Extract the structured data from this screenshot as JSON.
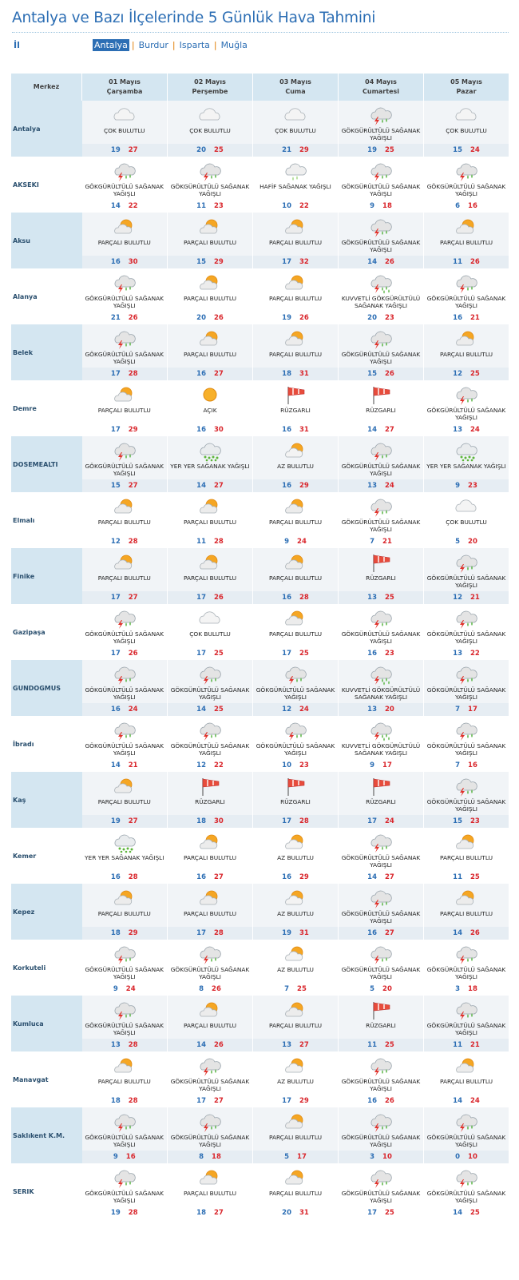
{
  "page": {
    "title": "Antalya ve Bazı İlçelerinde 5 Günlük Hava Tahmini",
    "il_label": "İl",
    "tabs": [
      "Antalya",
      "Burdur",
      "Isparta",
      "Muğla"
    ],
    "active_tab": "Antalya"
  },
  "table": {
    "header_label": "Merkez",
    "days": [
      {
        "date": "01 Mayıs",
        "weekday": "Çarşamba"
      },
      {
        "date": "02 Mayıs",
        "weekday": "Perşembe"
      },
      {
        "date": "03 Mayıs",
        "weekday": "Cuma"
      },
      {
        "date": "04 Mayıs",
        "weekday": "Cumartesi"
      },
      {
        "date": "05 Mayıs",
        "weekday": "Pazar"
      }
    ],
    "rows": [
      {
        "city": "Antalya",
        "days": [
          {
            "cond": "ÇOK BULUTLU",
            "icon": "cloudy-icon",
            "min": "19",
            "max": "27"
          },
          {
            "cond": "ÇOK BULUTLU",
            "icon": "cloudy-icon",
            "min": "20",
            "max": "25"
          },
          {
            "cond": "ÇOK BULUTLU",
            "icon": "cloudy-icon",
            "min": "21",
            "max": "29"
          },
          {
            "cond": "GÖKGÜRÜLTÜLÜ SAĞANAK YAĞIŞLI",
            "icon": "thunderstorm-icon",
            "min": "19",
            "max": "25"
          },
          {
            "cond": "ÇOK BULUTLU",
            "icon": "cloudy-icon",
            "min": "15",
            "max": "24"
          }
        ]
      },
      {
        "city": "AKSEKI",
        "days": [
          {
            "cond": "GÖKGÜRÜLTÜLÜ SAĞANAK YAĞIŞLI",
            "icon": "thunderstorm-icon",
            "min": "14",
            "max": "22"
          },
          {
            "cond": "GÖKGÜRÜLTÜLÜ SAĞANAK YAĞIŞLI",
            "icon": "thunderstorm-icon",
            "min": "11",
            "max": "23"
          },
          {
            "cond": "HAFİF SAĞANAK YAĞIŞLI",
            "icon": "light-shower-icon",
            "min": "10",
            "max": "22"
          },
          {
            "cond": "GÖKGÜRÜLTÜLÜ SAĞANAK YAĞIŞLI",
            "icon": "thunderstorm-icon",
            "min": "9",
            "max": "18"
          },
          {
            "cond": "GÖKGÜRÜLTÜLÜ SAĞANAK YAĞIŞLI",
            "icon": "thunderstorm-icon",
            "min": "6",
            "max": "16"
          }
        ]
      },
      {
        "city": "Aksu",
        "days": [
          {
            "cond": "PARÇALI BULUTLU",
            "icon": "partly-cloudy-icon",
            "min": "16",
            "max": "30"
          },
          {
            "cond": "PARÇALI BULUTLU",
            "icon": "partly-cloudy-icon",
            "min": "15",
            "max": "29"
          },
          {
            "cond": "PARÇALI BULUTLU",
            "icon": "partly-cloudy-icon",
            "min": "17",
            "max": "32"
          },
          {
            "cond": "GÖKGÜRÜLTÜLÜ SAĞANAK YAĞIŞLI",
            "icon": "thunderstorm-icon",
            "min": "14",
            "max": "26"
          },
          {
            "cond": "PARÇALI BULUTLU",
            "icon": "partly-cloudy-icon",
            "min": "11",
            "max": "26"
          }
        ]
      },
      {
        "city": "Alanya",
        "days": [
          {
            "cond": "GÖKGÜRÜLTÜLÜ SAĞANAK YAĞIŞLI",
            "icon": "thunderstorm-icon",
            "min": "21",
            "max": "26"
          },
          {
            "cond": "PARÇALI BULUTLU",
            "icon": "partly-cloudy-icon",
            "min": "20",
            "max": "26"
          },
          {
            "cond": "PARÇALI BULUTLU",
            "icon": "partly-cloudy-icon",
            "min": "19",
            "max": "26"
          },
          {
            "cond": "KUVVETLİ GÖKGÜRÜLTÜLÜ SAĞANAK YAĞIŞLI",
            "icon": "heavy-thunderstorm-icon",
            "min": "20",
            "max": "23"
          },
          {
            "cond": "GÖKGÜRÜLTÜLÜ SAĞANAK YAĞIŞLI",
            "icon": "thunderstorm-icon",
            "min": "16",
            "max": "21"
          }
        ]
      },
      {
        "city": "Belek",
        "days": [
          {
            "cond": "GÖKGÜRÜLTÜLÜ SAĞANAK YAĞIŞLI",
            "icon": "thunderstorm-icon",
            "min": "17",
            "max": "28"
          },
          {
            "cond": "PARÇALI BULUTLU",
            "icon": "partly-cloudy-icon",
            "min": "16",
            "max": "27"
          },
          {
            "cond": "PARÇALI BULUTLU",
            "icon": "partly-cloudy-icon",
            "min": "18",
            "max": "31"
          },
          {
            "cond": "GÖKGÜRÜLTÜLÜ SAĞANAK YAĞIŞLI",
            "icon": "thunderstorm-icon",
            "min": "15",
            "max": "26"
          },
          {
            "cond": "PARÇALI BULUTLU",
            "icon": "partly-cloudy-icon",
            "min": "12",
            "max": "25"
          }
        ]
      },
      {
        "city": "Demre",
        "days": [
          {
            "cond": "PARÇALI BULUTLU",
            "icon": "partly-cloudy-icon",
            "min": "17",
            "max": "29"
          },
          {
            "cond": "AÇIK",
            "icon": "sunny-icon",
            "min": "16",
            "max": "30"
          },
          {
            "cond": "RÜZGARLI",
            "icon": "windsock-icon",
            "min": "16",
            "max": "31"
          },
          {
            "cond": "RÜZGARLI",
            "icon": "windsock-icon",
            "min": "14",
            "max": "27"
          },
          {
            "cond": "GÖKGÜRÜLTÜLÜ SAĞANAK YAĞIŞLI",
            "icon": "thunderstorm-icon",
            "min": "13",
            "max": "24"
          }
        ]
      },
      {
        "city": "DOSEMEALTI",
        "days": [
          {
            "cond": "GÖKGÜRÜLTÜLÜ SAĞANAK YAĞIŞLI",
            "icon": "thunderstorm-icon",
            "min": "15",
            "max": "27"
          },
          {
            "cond": "YER YER SAĞANAK YAĞIŞLI",
            "icon": "scattered-shower-icon",
            "min": "14",
            "max": "27"
          },
          {
            "cond": "AZ BULUTLU",
            "icon": "mostly-sunny-icon",
            "min": "16",
            "max": "29"
          },
          {
            "cond": "GÖKGÜRÜLTÜLÜ SAĞANAK YAĞIŞLI",
            "icon": "thunderstorm-icon",
            "min": "13",
            "max": "24"
          },
          {
            "cond": "YER YER SAĞANAK YAĞIŞLI",
            "icon": "scattered-shower-icon",
            "min": "9",
            "max": "23"
          }
        ]
      },
      {
        "city": "Elmalı",
        "days": [
          {
            "cond": "PARÇALI BULUTLU",
            "icon": "partly-cloudy-icon",
            "min": "12",
            "max": "28"
          },
          {
            "cond": "PARÇALI BULUTLU",
            "icon": "partly-cloudy-icon",
            "min": "11",
            "max": "28"
          },
          {
            "cond": "PARÇALI BULUTLU",
            "icon": "partly-cloudy-icon",
            "min": "9",
            "max": "24"
          },
          {
            "cond": "GÖKGÜRÜLTÜLÜ SAĞANAK YAĞIŞLI",
            "icon": "thunderstorm-icon",
            "min": "7",
            "max": "21"
          },
          {
            "cond": "ÇOK BULUTLU",
            "icon": "cloudy-icon",
            "min": "5",
            "max": "20"
          }
        ]
      },
      {
        "city": "Finike",
        "days": [
          {
            "cond": "PARÇALI BULUTLU",
            "icon": "partly-cloudy-icon",
            "min": "17",
            "max": "27"
          },
          {
            "cond": "PARÇALI BULUTLU",
            "icon": "partly-cloudy-icon",
            "min": "17",
            "max": "26"
          },
          {
            "cond": "PARÇALI BULUTLU",
            "icon": "partly-cloudy-icon",
            "min": "16",
            "max": "28"
          },
          {
            "cond": "RÜZGARLI",
            "icon": "windsock-icon",
            "min": "13",
            "max": "25"
          },
          {
            "cond": "GÖKGÜRÜLTÜLÜ SAĞANAK YAĞIŞLI",
            "icon": "thunderstorm-icon",
            "min": "12",
            "max": "21"
          }
        ]
      },
      {
        "city": "Gazipaşa",
        "days": [
          {
            "cond": "GÖKGÜRÜLTÜLÜ SAĞANAK YAĞIŞLI",
            "icon": "thunderstorm-icon",
            "min": "17",
            "max": "26"
          },
          {
            "cond": "ÇOK BULUTLU",
            "icon": "cloudy-icon",
            "min": "17",
            "max": "25"
          },
          {
            "cond": "PARÇALI BULUTLU",
            "icon": "partly-cloudy-icon",
            "min": "17",
            "max": "25"
          },
          {
            "cond": "GÖKGÜRÜLTÜLÜ SAĞANAK YAĞIŞLI",
            "icon": "thunderstorm-icon",
            "min": "16",
            "max": "23"
          },
          {
            "cond": "GÖKGÜRÜLTÜLÜ SAĞANAK YAĞIŞLI",
            "icon": "thunderstorm-icon",
            "min": "13",
            "max": "22"
          }
        ]
      },
      {
        "city": "GUNDOGMUS",
        "days": [
          {
            "cond": "GÖKGÜRÜLTÜLÜ SAĞANAK YAĞIŞLI",
            "icon": "thunderstorm-icon",
            "min": "16",
            "max": "24"
          },
          {
            "cond": "GÖKGÜRÜLTÜLÜ SAĞANAK YAĞIŞLI",
            "icon": "thunderstorm-icon",
            "min": "14",
            "max": "25"
          },
          {
            "cond": "GÖKGÜRÜLTÜLÜ SAĞANAK YAĞIŞLI",
            "icon": "thunderstorm-icon",
            "min": "12",
            "max": "24"
          },
          {
            "cond": "KUVVETLİ GÖKGÜRÜLTÜLÜ SAĞANAK YAĞIŞLI",
            "icon": "heavy-thunderstorm-icon",
            "min": "13",
            "max": "20"
          },
          {
            "cond": "GÖKGÜRÜLTÜLÜ SAĞANAK YAĞIŞLI",
            "icon": "thunderstorm-icon",
            "min": "7",
            "max": "17"
          }
        ]
      },
      {
        "city": "İbradı",
        "days": [
          {
            "cond": "GÖKGÜRÜLTÜLÜ SAĞANAK YAĞIŞLI",
            "icon": "thunderstorm-icon",
            "min": "14",
            "max": "21"
          },
          {
            "cond": "GÖKGÜRÜLTÜLÜ SAĞANAK YAĞIŞLI",
            "icon": "thunderstorm-icon",
            "min": "12",
            "max": "22"
          },
          {
            "cond": "GÖKGÜRÜLTÜLÜ SAĞANAK YAĞIŞLI",
            "icon": "thunderstorm-icon",
            "min": "10",
            "max": "23"
          },
          {
            "cond": "KUVVETLİ GÖKGÜRÜLTÜLÜ SAĞANAK YAĞIŞLI",
            "icon": "heavy-thunderstorm-icon",
            "min": "9",
            "max": "17"
          },
          {
            "cond": "GÖKGÜRÜLTÜLÜ SAĞANAK YAĞIŞLI",
            "icon": "thunderstorm-icon",
            "min": "7",
            "max": "16"
          }
        ]
      },
      {
        "city": "Kaş",
        "days": [
          {
            "cond": "PARÇALI BULUTLU",
            "icon": "partly-cloudy-icon",
            "min": "19",
            "max": "27"
          },
          {
            "cond": "RÜZGARLI",
            "icon": "windsock-icon",
            "min": "18",
            "max": "30"
          },
          {
            "cond": "RÜZGARLI",
            "icon": "windsock-icon",
            "min": "17",
            "max": "28"
          },
          {
            "cond": "RÜZGARLI",
            "icon": "windsock-icon",
            "min": "17",
            "max": "24"
          },
          {
            "cond": "GÖKGÜRÜLTÜLÜ SAĞANAK YAĞIŞLI",
            "icon": "thunderstorm-icon",
            "min": "15",
            "max": "23"
          }
        ]
      },
      {
        "city": "Kemer",
        "days": [
          {
            "cond": "YER YER SAĞANAK YAĞIŞLI",
            "icon": "scattered-shower-icon",
            "min": "16",
            "max": "28"
          },
          {
            "cond": "PARÇALI BULUTLU",
            "icon": "partly-cloudy-icon",
            "min": "16",
            "max": "27"
          },
          {
            "cond": "AZ BULUTLU",
            "icon": "mostly-sunny-icon",
            "min": "16",
            "max": "29"
          },
          {
            "cond": "GÖKGÜRÜLTÜLÜ SAĞANAK YAĞIŞLI",
            "icon": "thunderstorm-icon",
            "min": "14",
            "max": "27"
          },
          {
            "cond": "PARÇALI BULUTLU",
            "icon": "partly-cloudy-icon",
            "min": "11",
            "max": "25"
          }
        ]
      },
      {
        "city": "Kepez",
        "days": [
          {
            "cond": "PARÇALI BULUTLU",
            "icon": "partly-cloudy-icon",
            "min": "18",
            "max": "29"
          },
          {
            "cond": "PARÇALI BULUTLU",
            "icon": "partly-cloudy-icon",
            "min": "17",
            "max": "28"
          },
          {
            "cond": "AZ BULUTLU",
            "icon": "mostly-sunny-icon",
            "min": "19",
            "max": "31"
          },
          {
            "cond": "GÖKGÜRÜLTÜLÜ SAĞANAK YAĞIŞLI",
            "icon": "thunderstorm-icon",
            "min": "16",
            "max": "27"
          },
          {
            "cond": "PARÇALI BULUTLU",
            "icon": "partly-cloudy-icon",
            "min": "14",
            "max": "26"
          }
        ]
      },
      {
        "city": "Korkuteli",
        "days": [
          {
            "cond": "GÖKGÜRÜLTÜLÜ SAĞANAK YAĞIŞLI",
            "icon": "thunderstorm-icon",
            "min": "9",
            "max": "24"
          },
          {
            "cond": "GÖKGÜRÜLTÜLÜ SAĞANAK YAĞIŞLI",
            "icon": "thunderstorm-icon",
            "min": "8",
            "max": "26"
          },
          {
            "cond": "AZ BULUTLU",
            "icon": "mostly-sunny-icon",
            "min": "7",
            "max": "25"
          },
          {
            "cond": "GÖKGÜRÜLTÜLÜ SAĞANAK YAĞIŞLI",
            "icon": "thunderstorm-icon",
            "min": "5",
            "max": "20"
          },
          {
            "cond": "GÖKGÜRÜLTÜLÜ SAĞANAK YAĞIŞLI",
            "icon": "thunderstorm-icon",
            "min": "3",
            "max": "18"
          }
        ]
      },
      {
        "city": "Kumluca",
        "days": [
          {
            "cond": "GÖKGÜRÜLTÜLÜ SAĞANAK YAĞIŞLI",
            "icon": "thunderstorm-icon",
            "min": "13",
            "max": "28"
          },
          {
            "cond": "PARÇALI BULUTLU",
            "icon": "partly-cloudy-icon",
            "min": "14",
            "max": "26"
          },
          {
            "cond": "PARÇALI BULUTLU",
            "icon": "partly-cloudy-icon",
            "min": "13",
            "max": "27"
          },
          {
            "cond": "RÜZGARLI",
            "icon": "windsock-icon",
            "min": "11",
            "max": "25"
          },
          {
            "cond": "GÖKGÜRÜLTÜLÜ SAĞANAK YAĞIŞLI",
            "icon": "thunderstorm-icon",
            "min": "11",
            "max": "21"
          }
        ]
      },
      {
        "city": "Manavgat",
        "days": [
          {
            "cond": "PARÇALI BULUTLU",
            "icon": "partly-cloudy-icon",
            "min": "18",
            "max": "28"
          },
          {
            "cond": "GÖKGÜRÜLTÜLÜ SAĞANAK YAĞIŞLI",
            "icon": "thunderstorm-icon",
            "min": "17",
            "max": "27"
          },
          {
            "cond": "AZ BULUTLU",
            "icon": "mostly-sunny-icon",
            "min": "17",
            "max": "29"
          },
          {
            "cond": "GÖKGÜRÜLTÜLÜ SAĞANAK YAĞIŞLI",
            "icon": "thunderstorm-icon",
            "min": "16",
            "max": "26"
          },
          {
            "cond": "PARÇALI BULUTLU",
            "icon": "partly-cloudy-icon",
            "min": "14",
            "max": "24"
          }
        ]
      },
      {
        "city": "Saklıkent K.M.",
        "days": [
          {
            "cond": "GÖKGÜRÜLTÜLÜ SAĞANAK YAĞIŞLI",
            "icon": "thunderstorm-icon",
            "min": "9",
            "max": "16"
          },
          {
            "cond": "GÖKGÜRÜLTÜLÜ SAĞANAK YAĞIŞLI",
            "icon": "thunderstorm-icon",
            "min": "8",
            "max": "18"
          },
          {
            "cond": "PARÇALI BULUTLU",
            "icon": "partly-cloudy-icon",
            "min": "5",
            "max": "17"
          },
          {
            "cond": "GÖKGÜRÜLTÜLÜ SAĞANAK YAĞIŞLI",
            "icon": "thunderstorm-icon",
            "min": "3",
            "max": "10"
          },
          {
            "cond": "GÖKGÜRÜLTÜLÜ SAĞANAK YAĞIŞLI",
            "icon": "thunderstorm-icon",
            "min": "0",
            "max": "10"
          }
        ]
      },
      {
        "city": "SERIK",
        "days": [
          {
            "cond": "GÖKGÜRÜLTÜLÜ SAĞANAK YAĞIŞLI",
            "icon": "thunderstorm-icon",
            "min": "19",
            "max": "28"
          },
          {
            "cond": "PARÇALI BULUTLU",
            "icon": "partly-cloudy-icon",
            "min": "18",
            "max": "27"
          },
          {
            "cond": "PARÇALI BULUTLU",
            "icon": "partly-cloudy-icon",
            "min": "20",
            "max": "31"
          },
          {
            "cond": "GÖKGÜRÜLTÜLÜ SAĞANAK YAĞIŞLI",
            "icon": "thunderstorm-icon",
            "min": "17",
            "max": "25"
          },
          {
            "cond": "GÖKGÜRÜLTÜLÜ SAĞANAK YAĞIŞLI",
            "icon": "thunderstorm-icon",
            "min": "14",
            "max": "25"
          }
        ]
      }
    ]
  }
}
